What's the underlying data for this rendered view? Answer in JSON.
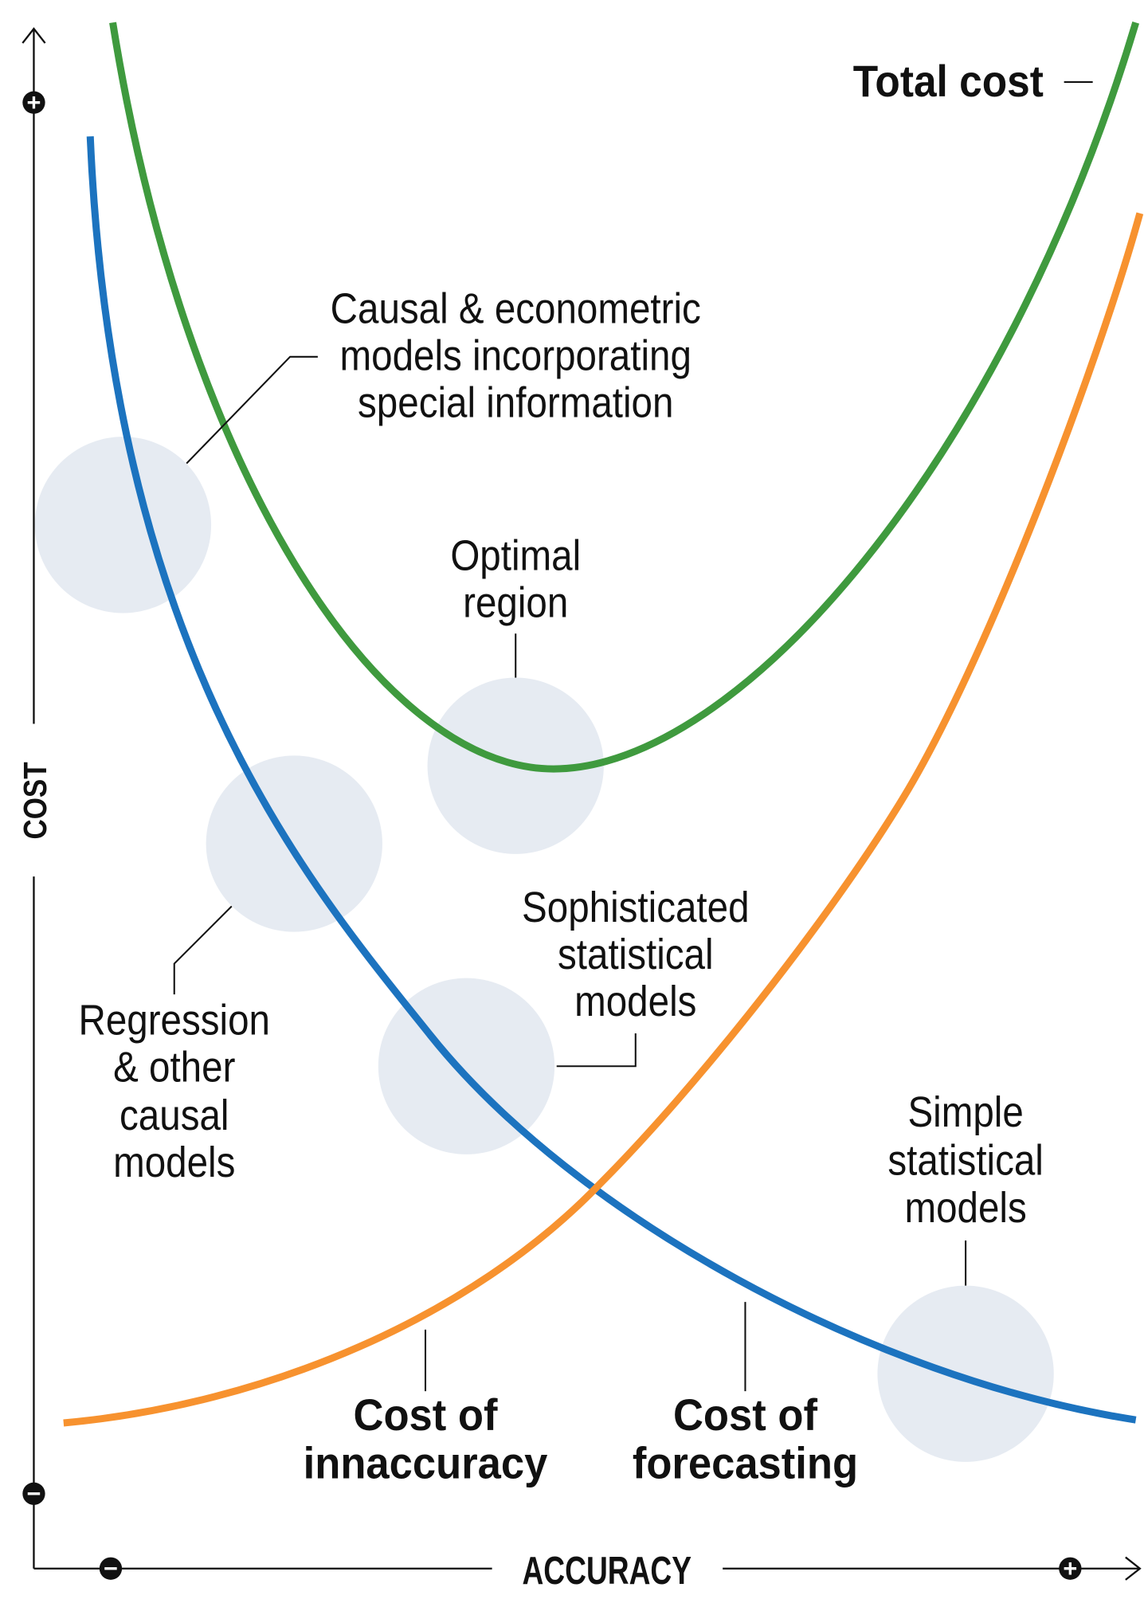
{
  "axes": {
    "y_label": "COST",
    "x_label": "ACCURACY",
    "icons": {
      "y_top": "plus-circle-icon",
      "y_bottom": "minus-circle-icon",
      "x_left": "minus-circle-icon",
      "x_right": "plus-circle-icon"
    }
  },
  "curves": {
    "total_cost": {
      "label": "Total cost",
      "color": "#3f9a3e"
    },
    "cost_of_innaccuracy": {
      "label_lines": [
        "Cost of",
        "innaccuracy"
      ],
      "color": "#f7922f"
    },
    "cost_of_forecasting": {
      "label_lines": [
        "Cost of",
        "forecasting"
      ],
      "color": "#1c73bf"
    }
  },
  "regions": {
    "fill": "#e6ebf2",
    "causal_econometric": {
      "lines": [
        "Causal & econometric",
        "models incorporating",
        "special information"
      ]
    },
    "optimal": {
      "lines": [
        "Optimal",
        "region"
      ]
    },
    "regression": {
      "lines": [
        "Regression",
        "& other",
        "causal",
        "models"
      ]
    },
    "sophisticated": {
      "lines": [
        "Sophisticated",
        "statistical",
        "models"
      ]
    },
    "simple": {
      "lines": [
        "Simple",
        "statistical",
        "models"
      ]
    }
  }
}
